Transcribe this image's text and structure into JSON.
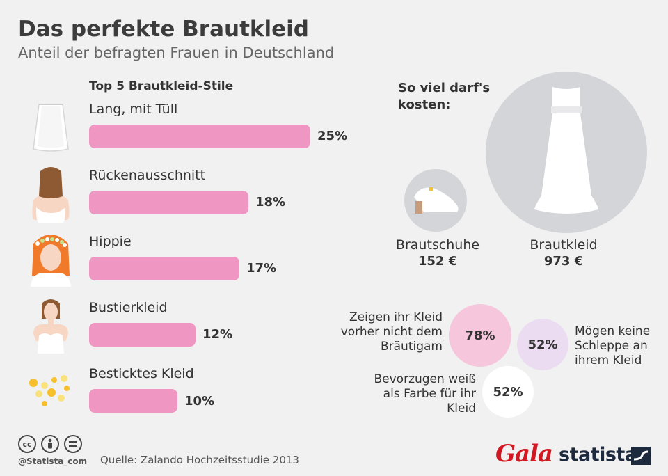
{
  "header": {
    "title": "Das perfekte Brautkleid",
    "subtitle": "Anteil der befragten Frauen in Deutschland"
  },
  "chart_data": {
    "type": "bar",
    "title": "Top 5 Brautkleid-Stile",
    "categories": [
      "Lang, mit Tüll",
      "Rückenausschnitt",
      "Hippie",
      "Bustierkleid",
      "Besticktes Kleid"
    ],
    "values": [
      25,
      18,
      17,
      12,
      10
    ],
    "value_labels": [
      "25%",
      "18%",
      "17%",
      "12%",
      "10%"
    ],
    "unit": "%",
    "xlim": [
      0,
      25
    ],
    "bar_color": "#ef97c2"
  },
  "icons": [
    "skirt-icon",
    "bride-back-icon",
    "hippie-bride-icon",
    "bustier-bride-icon",
    "embroidery-icon"
  ],
  "costs": {
    "heading": "So viel darf's kosten:",
    "items": [
      {
        "label": "Brautschuhe",
        "value": "152 €",
        "icon": "shoe-icon"
      },
      {
        "label": "Brautkleid",
        "value": "973 €",
        "icon": "dress-icon"
      }
    ]
  },
  "stats": [
    {
      "value": "78%",
      "text": "Zeigen ihr Kleid vorher nicht dem Bräutigam",
      "color": "#f5c6dc"
    },
    {
      "value": "52%",
      "text": "Mögen keine Schleppe an ihrem Kleid",
      "color": "#ecdcf2"
    },
    {
      "value": "52%",
      "text": "Bevorzugen weiß als Farbe für ihr Kleid",
      "color": "#ffffff"
    }
  ],
  "footer": {
    "handle": "@Statista_com",
    "source": "Quelle: Zalando Hochzeitsstudie 2013",
    "brand_gala": "Gala",
    "brand_statista": "statista"
  },
  "colors": {
    "background": "#f1f1f1",
    "bar": "#ef97c2",
    "circle_gray": "#d3d5d9",
    "gala_red": "#d21822",
    "statista_navy": "#1d2a3e"
  }
}
